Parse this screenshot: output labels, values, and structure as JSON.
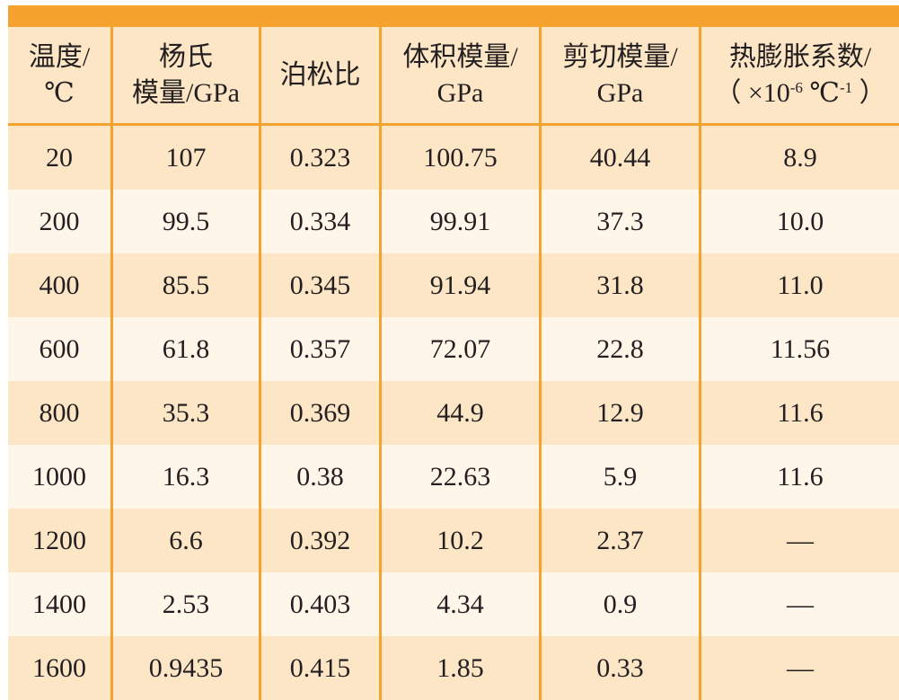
{
  "table": {
    "headers": [
      {
        "line1": "温度/",
        "line2": "℃"
      },
      {
        "line1": "杨氏",
        "line2": "模量/GPa"
      },
      {
        "line1": "泊松比",
        "line2": ""
      },
      {
        "line1": "体积模量/",
        "line2": "GPa"
      },
      {
        "line1": "剪切模量/",
        "line2": "GPa"
      },
      {
        "line1": "热膨胀系数/",
        "line2_prefix": "（ ×10",
        "line2_sup1": "-6",
        "line2_mid": " ℃",
        "line2_sup2": "-1",
        "line2_suffix": " ）"
      }
    ],
    "rows": [
      [
        "20",
        "107",
        "0.323",
        "100.75",
        "40.44",
        "8.9"
      ],
      [
        "200",
        "99.5",
        "0.334",
        "99.91",
        "37.3",
        "10.0"
      ],
      [
        "400",
        "85.5",
        "0.345",
        "91.94",
        "31.8",
        "11.0"
      ],
      [
        "600",
        "61.8",
        "0.357",
        "72.07",
        "22.8",
        "11.56"
      ],
      [
        "800",
        "35.3",
        "0.369",
        "44.9",
        "12.9",
        "11.6"
      ],
      [
        "1000",
        "16.3",
        "0.38",
        "22.63",
        "5.9",
        "11.6"
      ],
      [
        "1200",
        "6.6",
        "0.392",
        "10.2",
        "2.37",
        "—"
      ],
      [
        "1400",
        "2.53",
        "0.403",
        "4.34",
        "0.9",
        "—"
      ],
      [
        "1600",
        "0.9435",
        "0.415",
        "1.85",
        "0.33",
        "—"
      ]
    ]
  },
  "colors": {
    "accent": "#f5a22f",
    "row_dark": "#fde6c6",
    "row_light": "#fff6ea"
  }
}
